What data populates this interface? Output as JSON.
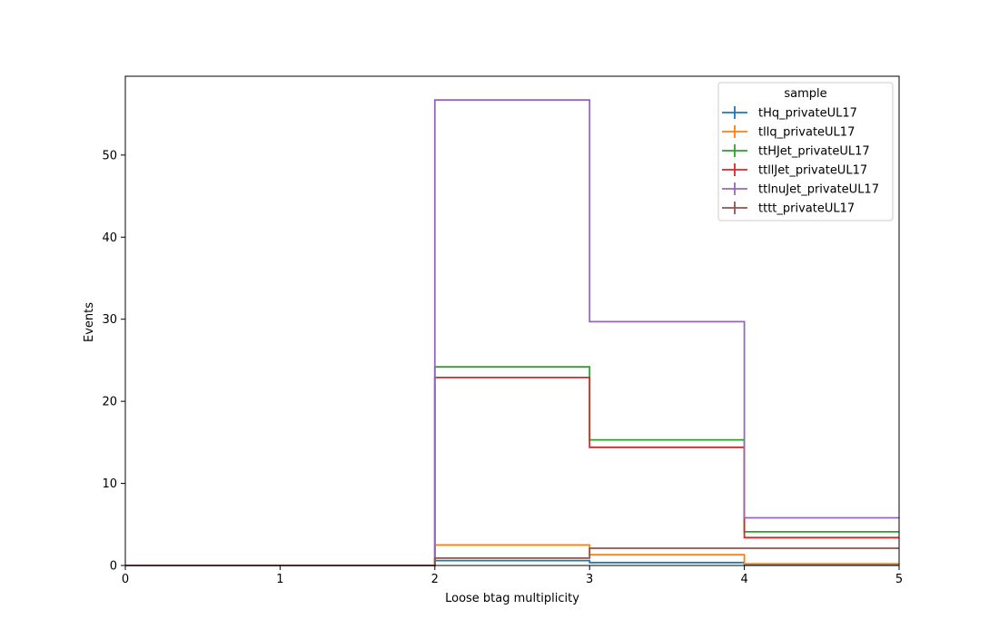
{
  "chart_data": {
    "type": "line",
    "style": "step histogram",
    "title": "",
    "xlabel": "Loose btag multiplicity",
    "ylabel": "Events",
    "xlim": [
      0,
      5
    ],
    "ylim": [
      0,
      59.6
    ],
    "xticks": [
      0,
      1,
      2,
      3,
      4,
      5
    ],
    "yticks": [
      0,
      10,
      20,
      30,
      40,
      50
    ],
    "grid": false,
    "bin_edges": [
      0,
      1,
      2,
      3,
      4,
      5
    ],
    "legend": {
      "title": "sample",
      "placement": "top-right"
    },
    "series": [
      {
        "name": "tHq_privateUL17",
        "color": "#1f77b4",
        "values": [
          0,
          0,
          0.6,
          0.35,
          0.1
        ]
      },
      {
        "name": "tllq_privateUL17",
        "color": "#ff7f0e",
        "values": [
          0,
          0,
          2.5,
          1.3,
          0.2
        ]
      },
      {
        "name": "ttHJet_privateUL17",
        "color": "#2ca02c",
        "values": [
          0,
          0,
          24.2,
          15.3,
          4.1
        ]
      },
      {
        "name": "ttllJet_privateUL17",
        "color": "#d62728",
        "values": [
          0,
          0,
          22.9,
          14.4,
          3.4
        ]
      },
      {
        "name": "ttlnuJet_privateUL17",
        "color": "#9467bd",
        "values": [
          0,
          0,
          56.7,
          29.7,
          5.8
        ]
      },
      {
        "name": "tttt_privateUL17",
        "color": "#8c564b",
        "values": [
          0,
          0,
          0.9,
          2.1,
          2.1
        ]
      }
    ]
  }
}
